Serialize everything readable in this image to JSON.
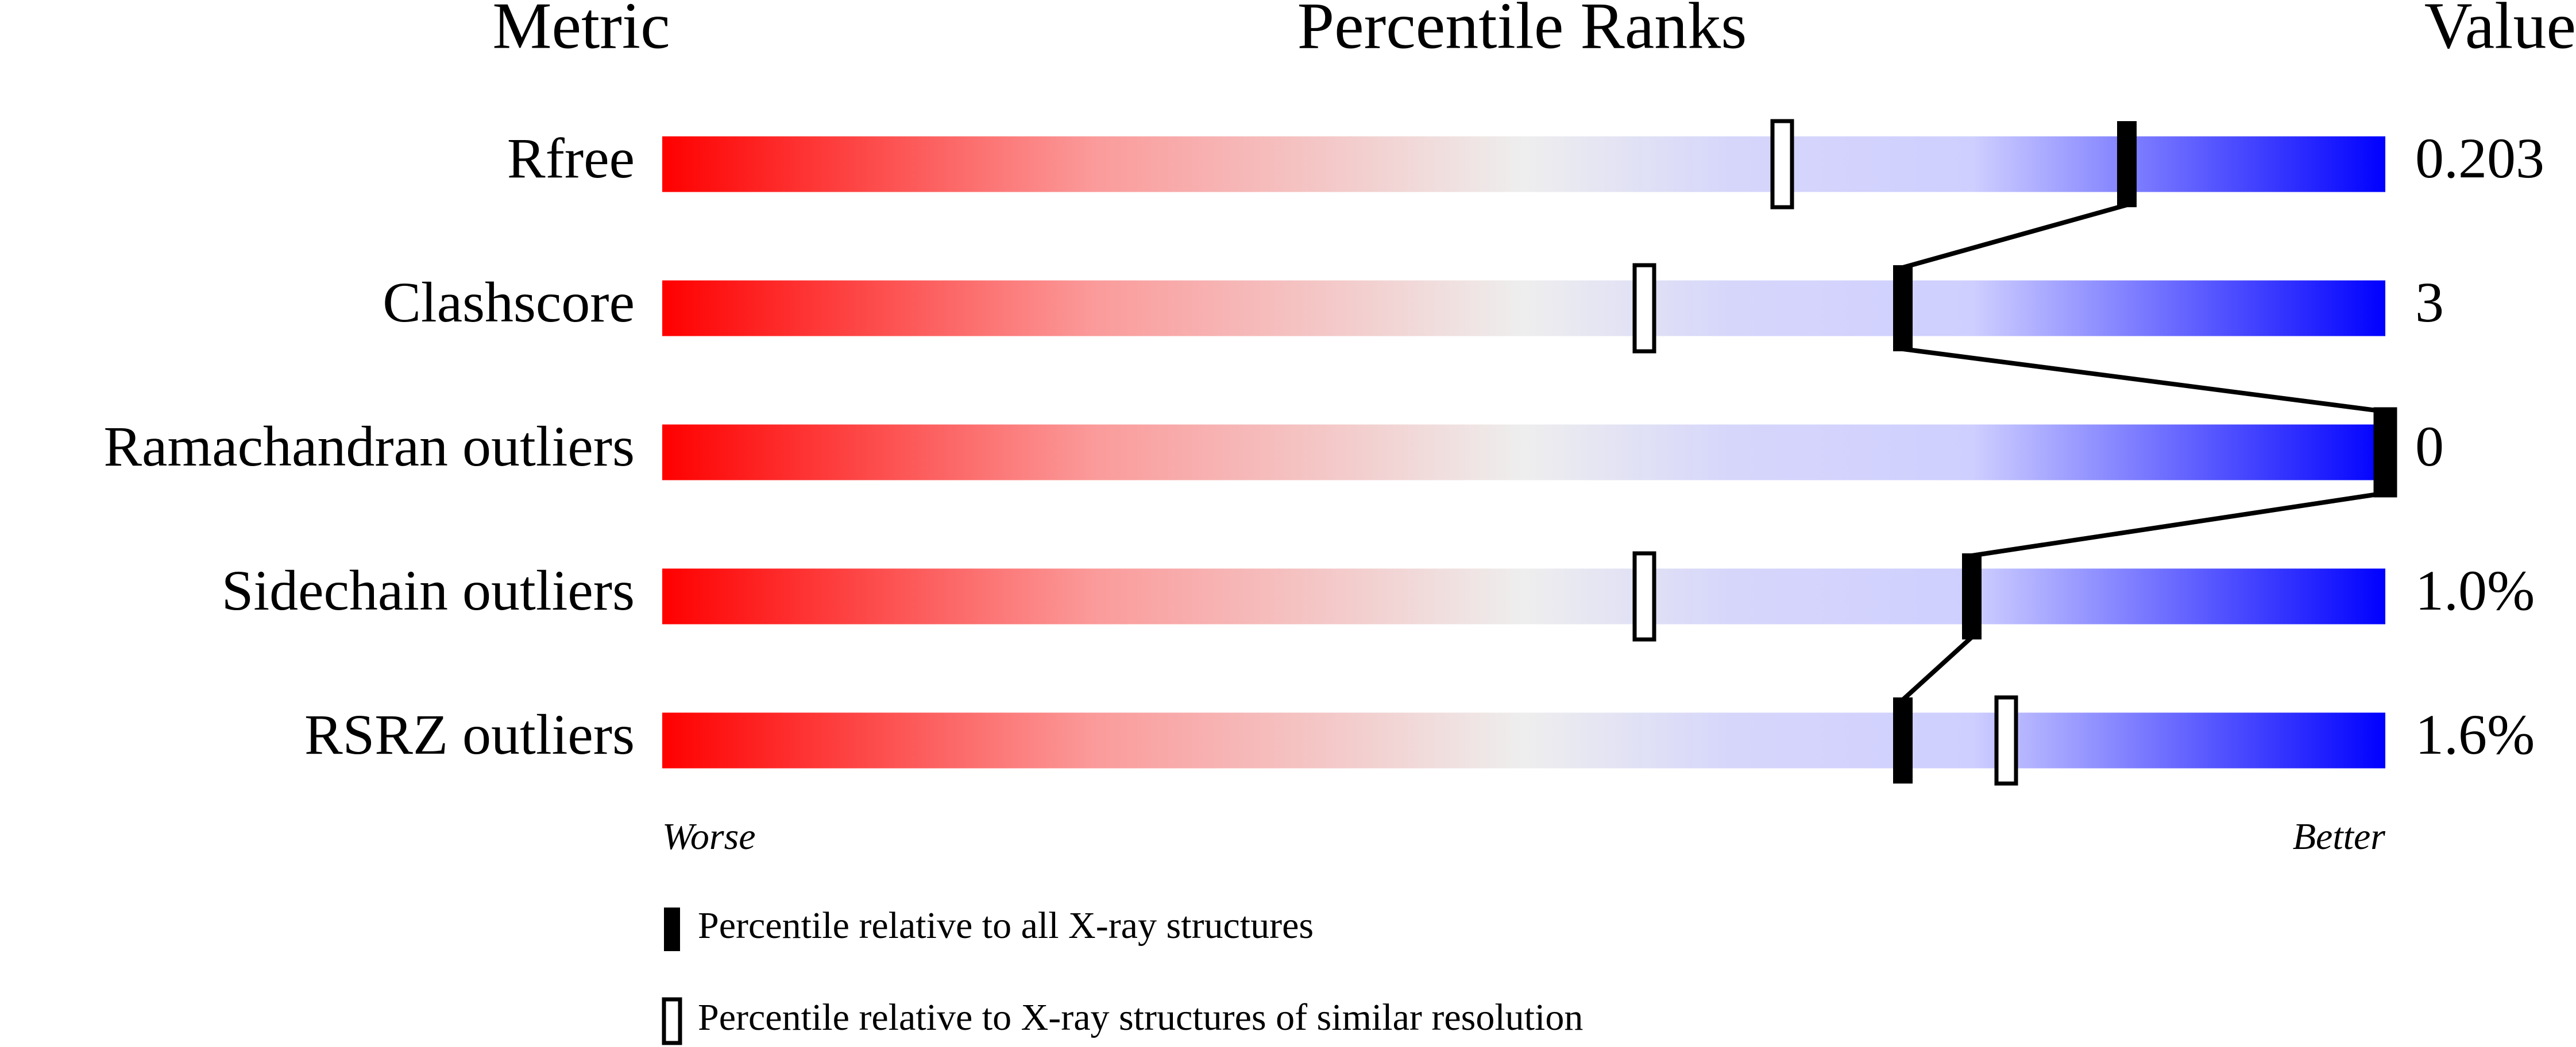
{
  "chart_data": {
    "type": "percentile",
    "metric_header": "Metric",
    "title": "Percentile Ranks",
    "value_header": "Value",
    "categories": [
      "Rfree",
      "Clashscore",
      "Ramachandran outliers",
      "Sidechain outliers",
      "RSRZ outliers"
    ],
    "value_labels": [
      "0.203",
      "3",
      "0",
      "1.0%",
      "1.6%"
    ],
    "series": [
      {
        "name": "Percentile relative to all X-ray structures",
        "color": "#000000",
        "values": [
          85,
          72,
          100,
          76,
          72
        ]
      },
      {
        "name": "Percentile relative to X-ray structures of similar resolution",
        "color": "#ffffff",
        "values": [
          65,
          57,
          100,
          57,
          78
        ]
      }
    ],
    "xlim": [
      0,
      100
    ],
    "annotations": [
      "Worse",
      "Better"
    ]
  }
}
